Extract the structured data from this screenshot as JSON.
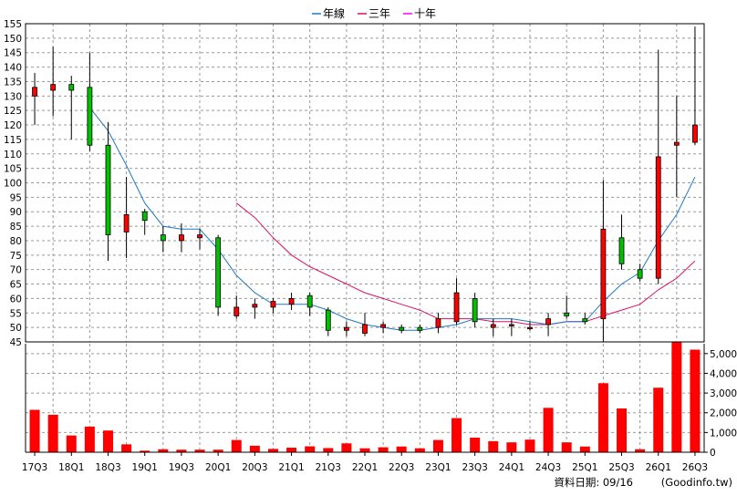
{
  "footer": {
    "update_label": "資料日期: 09/16",
    "source_label": "(Goodinfo.tw)"
  },
  "chart_data": [
    {
      "type": "candlestick",
      "legend_position": "top-center",
      "grid": true,
      "ylim": [
        45,
        155
      ],
      "y_ticks": [
        45,
        50,
        55,
        60,
        65,
        70,
        75,
        80,
        85,
        90,
        95,
        100,
        105,
        110,
        115,
        120,
        125,
        130,
        135,
        140,
        145,
        150,
        155
      ],
      "x_ticks": [
        "17Q3",
        "18Q1",
        "18Q3",
        "19Q1",
        "19Q3",
        "20Q1",
        "20Q3",
        "21Q1",
        "21Q3",
        "22Q1",
        "22Q3",
        "23Q1",
        "23Q3",
        "24Q1",
        "24Q3",
        "25Q1",
        "25Q3",
        "26Q1",
        "26Q3"
      ],
      "colors": {
        "up": "#ff0000",
        "down": "#00c000",
        "ma_year": "#1e78c8",
        "ma_three": "#dd1166",
        "ma_ten": "#ff00ff",
        "grid": "#999999"
      },
      "series": [
        {
          "name": "年線",
          "color": "#1e78c8"
        },
        {
          "name": "三年",
          "color": "#dd1166"
        },
        {
          "name": "十年",
          "color": "#ff00ff"
        }
      ],
      "candles": [
        {
          "q": "17Q3",
          "open": 130,
          "close": 133,
          "high": 138,
          "low": 120
        },
        {
          "q": "17Q4",
          "open": 132,
          "close": 134,
          "high": 147,
          "low": 123
        },
        {
          "q": "18Q1",
          "open": 134,
          "close": 132,
          "high": 137,
          "low": 115
        },
        {
          "q": "18Q2",
          "open": 133,
          "close": 113,
          "high": 145,
          "low": 111
        },
        {
          "q": "18Q3",
          "open": 113,
          "close": 82,
          "high": 121,
          "low": 73
        },
        {
          "q": "18Q4",
          "open": 83,
          "close": 89,
          "high": 102,
          "low": 74
        },
        {
          "q": "19Q1",
          "open": 90,
          "close": 87,
          "high": 91,
          "low": 82
        },
        {
          "q": "19Q2",
          "open": 82,
          "close": 80,
          "high": 85,
          "low": 76
        },
        {
          "q": "19Q3",
          "open": 80,
          "close": 82,
          "high": 86,
          "low": 76
        },
        {
          "q": "19Q4",
          "open": 81,
          "close": 82,
          "high": 84,
          "low": 77
        },
        {
          "q": "20Q1",
          "open": 81,
          "close": 57,
          "high": 82,
          "low": 54
        },
        {
          "q": "20Q2",
          "open": 54,
          "close": 57,
          "high": 61,
          "low": 53
        },
        {
          "q": "20Q3",
          "open": 57,
          "close": 58,
          "high": 60,
          "low": 53
        },
        {
          "q": "20Q4",
          "open": 57,
          "close": 59,
          "high": 60,
          "low": 55
        },
        {
          "q": "21Q1",
          "open": 58,
          "close": 60,
          "high": 62,
          "low": 56
        },
        {
          "q": "21Q2",
          "open": 61,
          "close": 57,
          "high": 62,
          "low": 54
        },
        {
          "q": "21Q3",
          "open": 56,
          "close": 49,
          "high": 57,
          "low": 47
        },
        {
          "q": "21Q4",
          "open": 49,
          "close": 50,
          "high": 52,
          "low": 47
        },
        {
          "q": "22Q1",
          "open": 48,
          "close": 51,
          "high": 55,
          "low": 47
        },
        {
          "q": "22Q2",
          "open": 50,
          "close": 51,
          "high": 52,
          "low": 48
        },
        {
          "q": "22Q3",
          "open": 50,
          "close": 49,
          "high": 51,
          "low": 48
        },
        {
          "q": "22Q4",
          "open": 50,
          "close": 49,
          "high": 51,
          "low": 48
        },
        {
          "q": "23Q1",
          "open": 50,
          "close": 53,
          "high": 55,
          "low": 48
        },
        {
          "q": "23Q2",
          "open": 52,
          "close": 62,
          "high": 67,
          "low": 51
        },
        {
          "q": "23Q3",
          "open": 60,
          "close": 52,
          "high": 62,
          "low": 50
        },
        {
          "q": "23Q4",
          "open": 50,
          "close": 51,
          "high": 53,
          "low": 47
        },
        {
          "q": "24Q1",
          "open": 51,
          "close": 51,
          "high": 53,
          "low": 47
        },
        {
          "q": "24Q2",
          "open": 50,
          "close": 50,
          "high": 52,
          "low": 49
        },
        {
          "q": "24Q3",
          "open": 51,
          "close": 53,
          "high": 55,
          "low": 47
        },
        {
          "q": "24Q4",
          "open": 55,
          "close": 54,
          "high": 61,
          "low": 53
        },
        {
          "q": "25Q1",
          "open": 53,
          "close": 52,
          "high": 55,
          "low": 51
        },
        {
          "q": "25Q2",
          "open": 53,
          "close": 84,
          "high": 101,
          "low": 45
        },
        {
          "q": "25Q3",
          "open": 81,
          "close": 72,
          "high": 89,
          "low": 70
        },
        {
          "q": "25Q4",
          "open": 70,
          "close": 67,
          "high": 72,
          "low": 66
        },
        {
          "q": "26Q1",
          "open": 67,
          "close": 109,
          "high": 146,
          "low": 65
        },
        {
          "q": "26Q2",
          "open": 113,
          "close": 114,
          "high": 130,
          "low": 95
        },
        {
          "q": "26Q3",
          "open": 114,
          "close": 120,
          "high": 154,
          "low": 113
        }
      ],
      "ma_year": [
        null,
        null,
        null,
        126,
        118,
        106,
        93,
        85,
        84,
        84,
        77,
        68,
        62,
        58,
        58,
        58,
        56,
        53,
        51,
        50,
        49,
        49,
        50,
        51,
        53,
        53,
        53,
        52,
        51,
        52,
        52,
        59,
        65,
        69,
        80,
        89,
        102
      ],
      "ma_three": [
        null,
        null,
        null,
        null,
        null,
        null,
        null,
        null,
        null,
        null,
        null,
        93,
        88,
        81,
        75,
        71,
        68,
        65,
        62,
        60,
        58,
        56,
        53,
        53,
        53,
        52,
        52,
        51,
        51,
        52,
        52,
        54,
        56,
        58,
        63,
        67,
        73
      ],
      "volume": {
        "ylim": [
          0,
          5500
        ],
        "y_ticks": [
          0,
          1000,
          2000,
          3000,
          4000,
          5000
        ],
        "y_tick_labels": [
          "0",
          "1,000",
          "2,000",
          "3,000",
          "4,000",
          "5,000"
        ],
        "values": [
          2150,
          1900,
          850,
          1300,
          1100,
          400,
          80,
          150,
          130,
          130,
          130,
          620,
          330,
          170,
          230,
          300,
          210,
          450,
          200,
          250,
          290,
          200,
          620,
          1730,
          740,
          560,
          500,
          640,
          2250,
          500,
          290,
          3500,
          2220,
          150,
          3270,
          5600,
          5200
        ]
      }
    }
  ]
}
